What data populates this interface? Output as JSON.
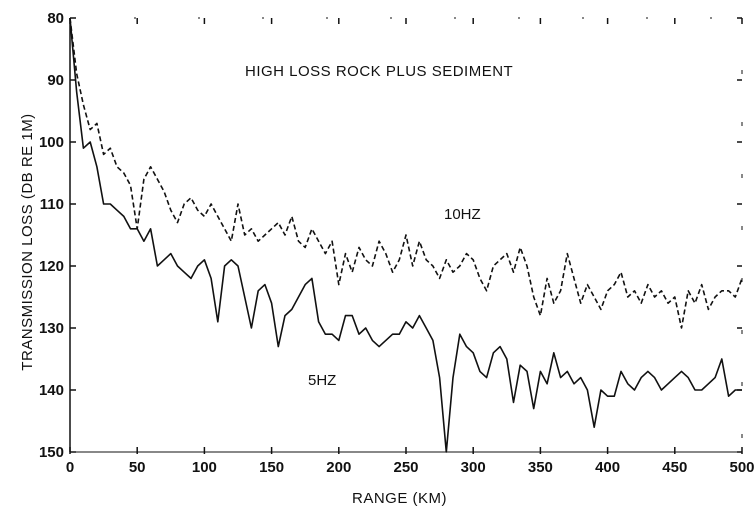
{
  "chart_data": {
    "type": "line",
    "title": "HIGH LOSS ROCK PLUS SEDIMENT",
    "xlabel": "RANGE (KM)",
    "ylabel": "TRANSMISSION LOSS (DB RE 1M)",
    "xlim": [
      0,
      500
    ],
    "ylim": [
      150,
      80
    ],
    "y_inverted": true,
    "grid": false,
    "x_ticks": [
      "0",
      "50",
      "100",
      "150",
      "200",
      "250",
      "300",
      "350",
      "400",
      "450",
      "500"
    ],
    "y_ticks": [
      "80",
      "90",
      "100",
      "110",
      "120",
      "130",
      "140",
      "150"
    ],
    "series": [
      {
        "name": "10HZ",
        "style": "dashed",
        "x": [
          0,
          5,
          10,
          15,
          20,
          25,
          30,
          35,
          40,
          45,
          50,
          55,
          60,
          65,
          70,
          75,
          80,
          85,
          90,
          95,
          100,
          105,
          110,
          115,
          120,
          125,
          130,
          135,
          140,
          145,
          150,
          155,
          160,
          165,
          170,
          175,
          180,
          185,
          190,
          195,
          200,
          205,
          210,
          215,
          220,
          225,
          230,
          235,
          240,
          245,
          250,
          255,
          260,
          265,
          270,
          275,
          280,
          285,
          290,
          295,
          300,
          305,
          310,
          315,
          320,
          325,
          330,
          335,
          340,
          345,
          350,
          355,
          360,
          365,
          370,
          375,
          380,
          385,
          390,
          395,
          400,
          405,
          410,
          415,
          420,
          425,
          430,
          435,
          440,
          445,
          450,
          455,
          460,
          465,
          470,
          475,
          480,
          485,
          490,
          495,
          500
        ],
        "values": [
          80,
          89,
          94,
          98,
          97,
          102,
          101,
          104,
          105,
          107,
          114,
          106,
          104,
          106,
          108,
          111,
          113,
          110,
          109,
          111,
          112,
          110,
          112,
          114,
          116,
          110,
          115,
          114,
          116,
          115,
          114,
          113,
          115,
          112,
          116,
          117,
          114,
          116,
          118,
          116,
          123,
          118,
          121,
          117,
          119,
          120,
          116,
          118,
          121,
          119,
          115,
          120,
          116,
          119,
          120,
          122,
          119,
          121,
          120,
          118,
          119,
          122,
          124,
          120,
          119,
          118,
          121,
          117,
          120,
          125,
          128,
          122,
          126,
          124,
          118,
          122,
          126,
          123,
          125,
          127,
          124,
          123,
          121,
          125,
          124,
          126,
          123,
          125,
          124,
          126,
          125,
          130,
          124,
          126,
          123,
          127,
          125,
          124,
          124,
          125,
          122
        ]
      },
      {
        "name": "5HZ",
        "style": "solid",
        "x": [
          0,
          5,
          10,
          15,
          20,
          25,
          30,
          35,
          40,
          45,
          50,
          55,
          60,
          65,
          70,
          75,
          80,
          85,
          90,
          95,
          100,
          105,
          110,
          115,
          120,
          125,
          130,
          135,
          140,
          145,
          150,
          155,
          160,
          165,
          170,
          175,
          180,
          185,
          190,
          195,
          200,
          205,
          210,
          215,
          220,
          225,
          230,
          235,
          240,
          245,
          250,
          255,
          260,
          265,
          270,
          275,
          280,
          285,
          290,
          295,
          300,
          305,
          310,
          315,
          320,
          325,
          330,
          335,
          340,
          345,
          350,
          355,
          360,
          365,
          370,
          375,
          380,
          385,
          390,
          395,
          400,
          405,
          410,
          415,
          420,
          425,
          430,
          435,
          440,
          445,
          450,
          455,
          460,
          465,
          470,
          475,
          480,
          485,
          490,
          495,
          500
        ],
        "values": [
          80,
          92,
          101,
          100,
          104,
          110,
          110,
          111,
          112,
          114,
          114,
          116,
          114,
          120,
          119,
          118,
          120,
          121,
          122,
          120,
          119,
          122,
          129,
          120,
          119,
          120,
          125,
          130,
          124,
          123,
          126,
          133,
          128,
          127,
          125,
          123,
          122,
          129,
          131,
          131,
          132,
          128,
          128,
          131,
          130,
          132,
          133,
          132,
          131,
          131,
          129,
          130,
          128,
          130,
          132,
          138,
          150,
          138,
          131,
          133,
          134,
          137,
          138,
          134,
          133,
          135,
          142,
          136,
          137,
          143,
          137,
          139,
          134,
          138,
          137,
          139,
          138,
          140,
          146,
          140,
          141,
          141,
          137,
          139,
          140,
          138,
          137,
          138,
          140,
          139,
          138,
          137,
          138,
          140,
          140,
          139,
          138,
          135,
          141,
          140,
          140
        ]
      }
    ]
  }
}
